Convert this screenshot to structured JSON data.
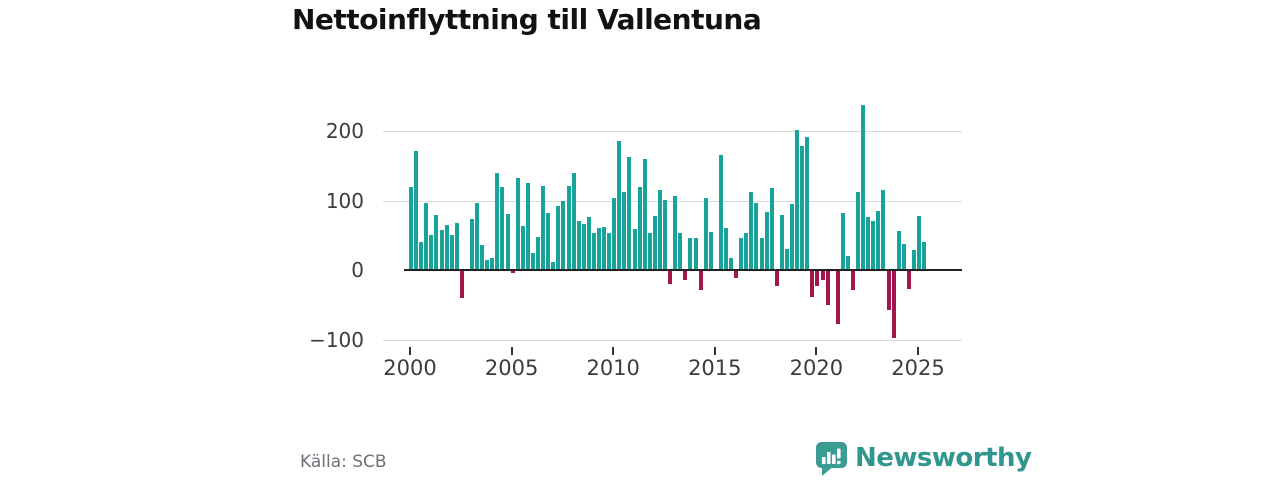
{
  "title": "Nettoinflyttning till Vallentuna",
  "source_label": "Källa: SCB",
  "branding": {
    "logo_text": "Newsworthy",
    "logo_icon": "speech-bubble-bar-chart-icon",
    "logo_icon_color": "#3b9c93",
    "logo_text_color": "#31968e"
  },
  "colors": {
    "positive_bar": "#18a39b",
    "negative_bar": "#a4154e",
    "gridline": "#dadada",
    "zero_line": "#222222",
    "axis_text": "#3c3c3c",
    "title_text": "#121212",
    "source_text": "#6e7178"
  },
  "chart_data": {
    "type": "bar",
    "title": "Nettoinflyttning till Vallentuna",
    "x_axis": {
      "frequency": "quarterly",
      "start": "2000-Q1",
      "end": "2025-Q2",
      "tick_labels": [
        "2000",
        "2005",
        "2010",
        "2015",
        "2020",
        "2025"
      ],
      "quarters_per_tick": 20
    },
    "y_axis": {
      "tick_values": [
        200,
        100,
        0,
        -100
      ],
      "tick_labels": [
        "200",
        "100",
        "0",
        "−100"
      ],
      "range": [
        -110,
        245
      ],
      "grid": true
    },
    "legend": "none",
    "values": [
      119,
      172,
      40,
      97,
      51,
      79,
      58,
      65,
      50,
      67,
      -40,
      0,
      73,
      97,
      36,
      15,
      17,
      140,
      119,
      81,
      -4,
      132,
      63,
      125,
      25,
      48,
      121,
      82,
      11,
      92,
      99,
      121,
      140,
      70,
      66,
      76,
      54,
      60,
      62,
      54,
      103,
      185,
      112,
      163,
      59,
      120,
      160,
      53,
      78,
      115,
      101,
      -20,
      107,
      54,
      -14,
      46,
      46,
      -29,
      103,
      55,
      0,
      166,
      60,
      18,
      -11,
      46,
      54,
      113,
      96,
      46,
      83,
      118,
      -23,
      79,
      30,
      95,
      201,
      179,
      192,
      -39,
      -23,
      -14,
      -51,
      0,
      -78,
      82,
      20,
      -29,
      112,
      237,
      77,
      70,
      85,
      115,
      -57,
      -98,
      56,
      37,
      -27,
      29,
      78,
      40
    ]
  }
}
